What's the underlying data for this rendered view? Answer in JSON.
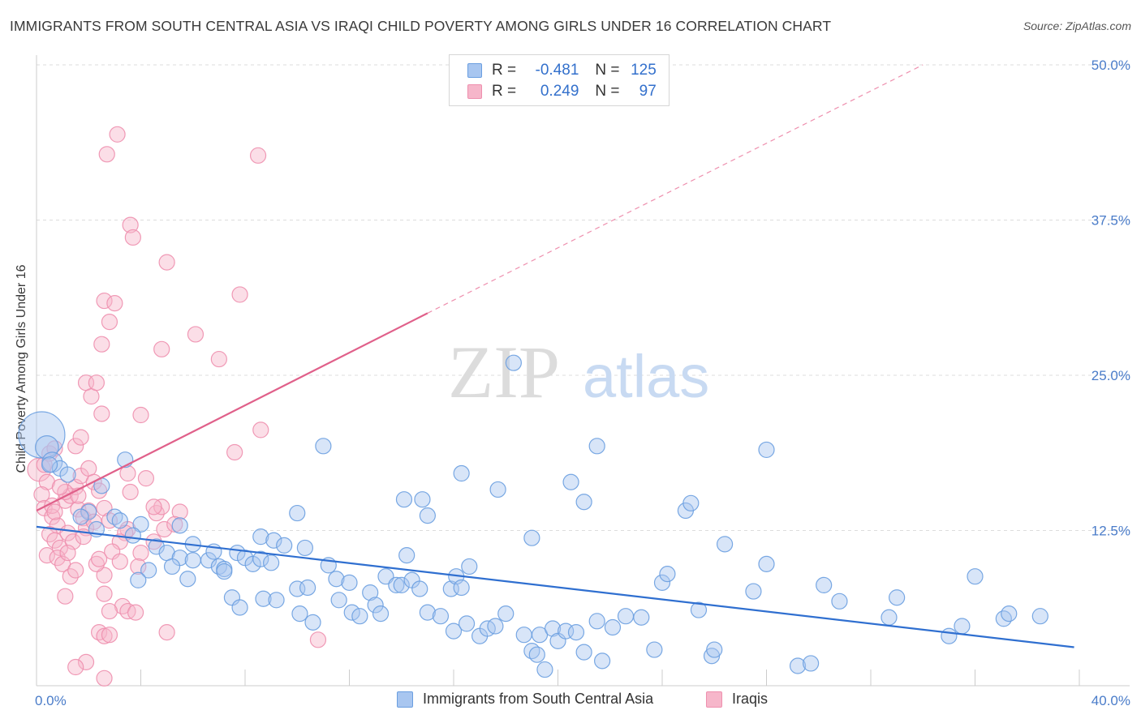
{
  "title": "IMMIGRANTS FROM SOUTH CENTRAL ASIA VS IRAQI CHILD POVERTY AMONG GIRLS UNDER 16 CORRELATION CHART",
  "source": "Source: ZipAtlas.com",
  "watermark": {
    "zip": "ZIP",
    "atlas": "atlas"
  },
  "legend": {
    "rows": [
      {
        "r_label": "R =",
        "r_value": "-0.481",
        "n_label": "N =",
        "n_value": "125"
      },
      {
        "r_label": "R =",
        "r_value": "0.249",
        "n_label": "N =",
        "n_value": "97"
      }
    ]
  },
  "bottom_legend": {
    "items": [
      "Immigrants from South Central Asia",
      "Iraqis"
    ]
  },
  "colors": {
    "blue_fill": "#a8c6f0",
    "blue_stroke": "#6a9ee0",
    "blue_line": "#2f6fd0",
    "pink_fill": "#f6b6ca",
    "pink_stroke": "#ee8fae",
    "pink_line": "#e0608a",
    "tick": "#4a7cc9",
    "grid": "#dddddd"
  },
  "chart_data": {
    "type": "scatter",
    "title": "IMMIGRANTS FROM SOUTH CENTRAL ASIA VS IRAQI CHILD POVERTY AMONG GIRLS UNDER 16 CORRELATION CHART",
    "xlabel": "",
    "ylabel": "Child Poverty Among Girls Under 16",
    "xlim": [
      0,
      40
    ],
    "ylim": [
      0,
      50
    ],
    "x_tick_labels": [
      "0.0%",
      "40.0%"
    ],
    "y_ticks": [
      12.5,
      25.0,
      37.5,
      50.0
    ],
    "y_tick_labels": [
      "12.5%",
      "25.0%",
      "37.5%",
      "50.0%"
    ],
    "grid": true,
    "legend_position": "top-center",
    "series": [
      {
        "name": "Immigrants from South Central Asia",
        "R": -0.481,
        "N": 125,
        "trend": {
          "x0": 0,
          "y0": 12.8,
          "x1": 39.8,
          "y1": 3.1
        },
        "points": [
          [
            0.2,
            20.2,
            3
          ],
          [
            0.4,
            19.2,
            1.5
          ],
          [
            0.6,
            18.0,
            1.3
          ],
          [
            0.9,
            17.5,
            1
          ],
          [
            1.2,
            17.0,
            1
          ],
          [
            0.5,
            17.8,
            1
          ],
          [
            2.5,
            16.1,
            1
          ],
          [
            3.4,
            18.2,
            1
          ],
          [
            2.0,
            14.0,
            1
          ],
          [
            1.7,
            13.6,
            1
          ],
          [
            2.3,
            12.6,
            1
          ],
          [
            3.0,
            13.6,
            1
          ],
          [
            3.2,
            13.3,
            1
          ],
          [
            4.0,
            13.0,
            1
          ],
          [
            3.7,
            12.1,
            1
          ],
          [
            4.6,
            11.2,
            1
          ],
          [
            5.0,
            10.7,
            1
          ],
          [
            5.5,
            10.3,
            1
          ],
          [
            4.3,
            9.3,
            1
          ],
          [
            3.9,
            8.5,
            1
          ],
          [
            5.2,
            9.6,
            1
          ],
          [
            5.8,
            8.6,
            1
          ],
          [
            6.0,
            10.1,
            1
          ],
          [
            6.6,
            10.1,
            1
          ],
          [
            6.8,
            10.8,
            1
          ],
          [
            7.0,
            9.6,
            1
          ],
          [
            7.2,
            9.4,
            1
          ],
          [
            7.7,
            10.7,
            1
          ],
          [
            8.0,
            10.3,
            1
          ],
          [
            8.3,
            9.8,
            1
          ],
          [
            8.6,
            10.2,
            1
          ],
          [
            9.0,
            9.9,
            1
          ],
          [
            8.6,
            12.0,
            1
          ],
          [
            9.1,
            11.7,
            1
          ],
          [
            9.5,
            11.3,
            1
          ],
          [
            10.0,
            13.9,
            1
          ],
          [
            10.3,
            11.1,
            1
          ],
          [
            11.2,
            9.7,
            1
          ],
          [
            11.5,
            8.6,
            1
          ],
          [
            12.0,
            8.3,
            1
          ],
          [
            7.5,
            7.1,
            1
          ],
          [
            7.8,
            6.3,
            1
          ],
          [
            8.7,
            7.0,
            1
          ],
          [
            9.2,
            6.9,
            1
          ],
          [
            10.0,
            7.8,
            1
          ],
          [
            10.4,
            7.9,
            1
          ],
          [
            10.1,
            5.8,
            1
          ],
          [
            10.6,
            5.1,
            1
          ],
          [
            11.6,
            6.9,
            1
          ],
          [
            12.1,
            5.9,
            1
          ],
          [
            12.4,
            5.6,
            1
          ],
          [
            12.8,
            7.5,
            1
          ],
          [
            13.0,
            6.5,
            1
          ],
          [
            13.2,
            5.8,
            1
          ],
          [
            13.4,
            8.8,
            1
          ],
          [
            13.8,
            8.1,
            1
          ],
          [
            14.0,
            8.1,
            1
          ],
          [
            14.2,
            10.5,
            1
          ],
          [
            14.4,
            8.5,
            1
          ],
          [
            14.7,
            7.8,
            1
          ],
          [
            15.0,
            5.9,
            1
          ],
          [
            15.5,
            5.6,
            1
          ],
          [
            15.9,
            7.8,
            1
          ],
          [
            16.1,
            8.8,
            1
          ],
          [
            16.6,
            9.6,
            1
          ],
          [
            16.3,
            7.9,
            1
          ],
          [
            16.0,
            4.4,
            1
          ],
          [
            16.5,
            5.0,
            1
          ],
          [
            17.0,
            4.0,
            1
          ],
          [
            17.3,
            4.6,
            1
          ],
          [
            17.6,
            4.8,
            1
          ],
          [
            18.0,
            5.8,
            1
          ],
          [
            18.7,
            4.1,
            1
          ],
          [
            19.3,
            4.1,
            1
          ],
          [
            19.0,
            2.8,
            1
          ],
          [
            19.2,
            2.5,
            1
          ],
          [
            19.5,
            1.3,
            1
          ],
          [
            19.8,
            4.6,
            1
          ],
          [
            20.0,
            3.6,
            1
          ],
          [
            20.3,
            4.4,
            1
          ],
          [
            20.7,
            4.3,
            1
          ],
          [
            21.0,
            2.7,
            1
          ],
          [
            21.5,
            5.2,
            1
          ],
          [
            21.7,
            2.0,
            1
          ],
          [
            22.1,
            4.7,
            1
          ],
          [
            22.6,
            5.6,
            1
          ],
          [
            23.2,
            5.5,
            1
          ],
          [
            23.7,
            2.9,
            1
          ],
          [
            21.0,
            14.8,
            1
          ],
          [
            21.5,
            19.3,
            1
          ],
          [
            20.5,
            16.4,
            1
          ],
          [
            17.7,
            15.8,
            1
          ],
          [
            16.3,
            17.1,
            1
          ],
          [
            24.0,
            8.3,
            1
          ],
          [
            24.2,
            9.0,
            1
          ],
          [
            24.9,
            14.1,
            1
          ],
          [
            25.1,
            14.7,
            1
          ],
          [
            25.4,
            6.1,
            1
          ],
          [
            25.9,
            2.4,
            1
          ],
          [
            26.0,
            2.9,
            1
          ],
          [
            26.4,
            11.4,
            1
          ],
          [
            27.5,
            7.6,
            1
          ],
          [
            28.0,
            9.8,
            1
          ],
          [
            29.2,
            1.6,
            1
          ],
          [
            29.7,
            1.8,
            1
          ],
          [
            30.2,
            8.1,
            1
          ],
          [
            30.8,
            6.8,
            1
          ],
          [
            28.0,
            19.0,
            1
          ],
          [
            32.7,
            5.5,
            1
          ],
          [
            33.0,
            7.1,
            1
          ],
          [
            35.0,
            4.0,
            1
          ],
          [
            35.5,
            4.8,
            1
          ],
          [
            36.0,
            8.8,
            1
          ],
          [
            37.1,
            5.4,
            1
          ],
          [
            37.3,
            5.8,
            1
          ],
          [
            38.5,
            5.6,
            1
          ],
          [
            19.0,
            11.9,
            1
          ],
          [
            18.3,
            26.0,
            1
          ],
          [
            11.0,
            19.3,
            1
          ],
          [
            14.1,
            15.0,
            1
          ],
          [
            14.8,
            15.0,
            1
          ],
          [
            15.0,
            13.7,
            1
          ],
          [
            7.2,
            9.2,
            1
          ],
          [
            6.0,
            11.4,
            1
          ],
          [
            5.5,
            12.9,
            1
          ]
        ]
      },
      {
        "name": "Iraqis",
        "R": 0.249,
        "N": 97,
        "trend": {
          "x0": 0,
          "y0": 14.1,
          "x1": 15.0,
          "y1": 30.0,
          "dash_x1": 34.0,
          "dash_y1": 50.0
        },
        "points": [
          [
            0.1,
            17.4,
            1.5
          ],
          [
            0.3,
            17.8,
            1
          ],
          [
            0.5,
            18.7,
            1
          ],
          [
            0.7,
            19.1,
            1
          ],
          [
            0.4,
            16.4,
            1
          ],
          [
            0.2,
            15.4,
            1
          ],
          [
            0.3,
            14.3,
            1
          ],
          [
            0.6,
            13.6,
            1
          ],
          [
            0.8,
            12.9,
            1
          ],
          [
            0.5,
            12.2,
            1
          ],
          [
            0.7,
            11.7,
            1
          ],
          [
            0.9,
            11.1,
            1
          ],
          [
            0.4,
            10.5,
            1
          ],
          [
            0.8,
            10.3,
            1
          ],
          [
            1.0,
            9.8,
            1
          ],
          [
            1.1,
            14.9,
            1
          ],
          [
            1.3,
            15.3,
            1
          ],
          [
            1.5,
            16.0,
            1
          ],
          [
            1.6,
            14.2,
            1
          ],
          [
            1.8,
            13.5,
            1
          ],
          [
            1.2,
            12.3,
            1
          ],
          [
            1.4,
            11.6,
            1
          ],
          [
            1.9,
            12.7,
            1
          ],
          [
            1.7,
            16.9,
            1
          ],
          [
            2.0,
            17.5,
            1
          ],
          [
            2.2,
            16.4,
            1
          ],
          [
            2.4,
            15.7,
            1
          ],
          [
            2.6,
            14.3,
            1
          ],
          [
            2.8,
            13.3,
            1
          ],
          [
            1.5,
            19.3,
            1
          ],
          [
            1.7,
            20.0,
            1
          ],
          [
            2.5,
            21.9,
            1
          ],
          [
            1.9,
            24.4,
            1
          ],
          [
            2.1,
            23.3,
            1
          ],
          [
            2.3,
            24.4,
            1
          ],
          [
            2.5,
            27.5,
            1
          ],
          [
            2.6,
            31.0,
            1
          ],
          [
            2.8,
            29.3,
            1
          ],
          [
            3.0,
            30.8,
            1
          ],
          [
            2.7,
            42.8,
            1
          ],
          [
            3.1,
            44.4,
            1
          ],
          [
            3.6,
            37.1,
            1
          ],
          [
            3.7,
            36.1,
            1
          ],
          [
            4.0,
            21.8,
            1
          ],
          [
            4.2,
            16.7,
            1
          ],
          [
            3.5,
            17.1,
            1
          ],
          [
            3.6,
            15.6,
            1
          ],
          [
            4.6,
            13.9,
            1
          ],
          [
            4.8,
            14.4,
            1
          ],
          [
            5.5,
            14.0,
            1
          ],
          [
            4.9,
            12.6,
            1
          ],
          [
            4.5,
            11.6,
            1
          ],
          [
            4.0,
            10.7,
            1
          ],
          [
            3.9,
            9.6,
            1
          ],
          [
            3.5,
            12.6,
            1
          ],
          [
            3.4,
            12.3,
            1
          ],
          [
            3.2,
            11.6,
            1
          ],
          [
            5.0,
            34.1,
            1
          ],
          [
            4.8,
            27.1,
            1
          ],
          [
            6.1,
            28.3,
            1
          ],
          [
            7.0,
            26.3,
            1
          ],
          [
            7.6,
            18.8,
            1
          ],
          [
            7.8,
            31.5,
            1
          ],
          [
            8.6,
            20.6,
            1
          ],
          [
            8.5,
            42.7,
            1
          ],
          [
            2.6,
            8.9,
            1
          ],
          [
            2.3,
            9.8,
            1
          ],
          [
            2.9,
            10.8,
            1
          ],
          [
            2.6,
            7.4,
            1
          ],
          [
            3.3,
            6.4,
            1
          ],
          [
            3.5,
            6.0,
            1
          ],
          [
            2.8,
            6.0,
            1
          ],
          [
            2.4,
            4.3,
            1
          ],
          [
            2.6,
            4.0,
            1
          ],
          [
            2.8,
            4.1,
            1
          ],
          [
            1.9,
            1.9,
            1
          ],
          [
            2.6,
            0.6,
            1
          ],
          [
            1.5,
            1.5,
            1
          ],
          [
            1.1,
            7.2,
            1
          ],
          [
            1.3,
            8.8,
            1
          ],
          [
            1.5,
            9.3,
            1
          ],
          [
            3.8,
            5.9,
            1
          ],
          [
            5.0,
            4.3,
            1
          ],
          [
            10.8,
            3.7,
            1
          ],
          [
            3.2,
            10.0,
            1
          ],
          [
            1.1,
            15.6,
            1
          ],
          [
            1.2,
            10.7,
            1
          ],
          [
            0.9,
            16.0,
            1
          ],
          [
            0.6,
            14.5,
            1
          ],
          [
            0.7,
            14.0,
            1
          ],
          [
            1.6,
            15.3,
            1
          ],
          [
            2.0,
            14.1,
            1
          ],
          [
            2.2,
            13.2,
            1
          ],
          [
            1.8,
            12.0,
            1
          ],
          [
            2.4,
            10.2,
            1
          ],
          [
            4.5,
            14.4,
            1
          ],
          [
            5.3,
            13.0,
            1
          ]
        ]
      }
    ]
  }
}
